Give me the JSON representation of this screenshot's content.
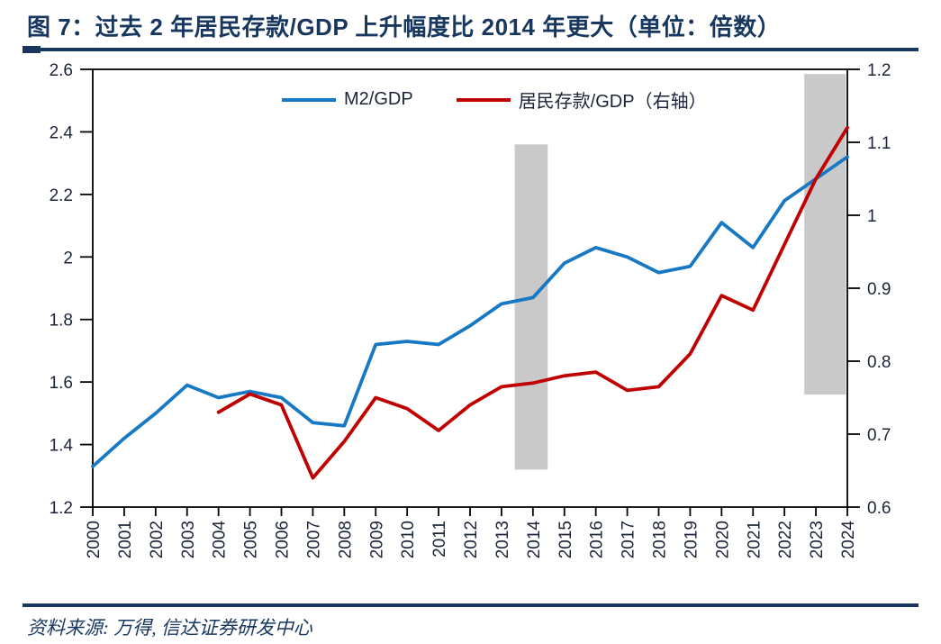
{
  "title": "图 7：过去 2 年居民存款/GDP 上升幅度比 2014 年更大（单位：倍数）",
  "source": "资料来源: 万得, 信达证券研发中心",
  "colors": {
    "accent_navy": "#17375E",
    "m2_line": "#1778C4",
    "deposit_line": "#C00000",
    "band_gray": "#C9C9C9",
    "axis_line": "#000000",
    "axis_text": "#1B2437"
  },
  "legend": {
    "items": [
      {
        "label": "M2/GDP",
        "color_key": "m2_line"
      },
      {
        "label": "居民存款/GDP（右轴）",
        "color_key": "deposit_line"
      }
    ]
  },
  "chart_data": {
    "type": "line",
    "title": "过去2年居民存款/GDP上升幅度比2014年更大（单位：倍数）",
    "x": [
      2000,
      2001,
      2002,
      2003,
      2004,
      2005,
      2006,
      2007,
      2008,
      2009,
      2010,
      2011,
      2012,
      2013,
      2014,
      2015,
      2016,
      2017,
      2018,
      2019,
      2020,
      2021,
      2022,
      2023,
      2024
    ],
    "series": [
      {
        "name": "M2/GDP",
        "axis": "left",
        "color_key": "m2_line",
        "values": [
          1.33,
          1.42,
          1.5,
          1.59,
          1.55,
          1.57,
          1.55,
          1.47,
          1.46,
          1.72,
          1.73,
          1.72,
          1.78,
          1.85,
          1.87,
          1.98,
          2.03,
          2.0,
          1.95,
          1.97,
          2.11,
          2.03,
          2.18,
          2.25,
          2.32
        ]
      },
      {
        "name": "居民存款/GDP（右轴）",
        "axis": "right",
        "color_key": "deposit_line",
        "values": [
          null,
          null,
          null,
          null,
          0.73,
          0.755,
          0.74,
          0.64,
          0.69,
          0.75,
          0.735,
          0.705,
          0.74,
          0.765,
          0.77,
          0.78,
          0.785,
          0.76,
          0.765,
          0.81,
          0.89,
          0.87,
          0.96,
          1.05,
          1.12
        ]
      }
    ],
    "left_axis": {
      "min": 1.2,
      "max": 2.6,
      "tick_values": [
        1.2,
        1.4,
        1.6,
        1.8,
        2.0,
        2.2,
        2.4,
        2.6
      ],
      "tick_labels": [
        "1.2",
        "1.4",
        "1.6",
        "1.8",
        "2",
        "2.2",
        "2.4",
        "2.6"
      ]
    },
    "right_axis": {
      "min": 0.6,
      "max": 1.2,
      "tick_values": [
        0.6,
        0.7,
        0.8,
        0.9,
        1.0,
        1.1,
        1.2
      ],
      "tick_labels": [
        "0.6",
        "0.7",
        "0.8",
        "0.9",
        "1",
        "1.1",
        "1.2"
      ]
    },
    "grid": false,
    "legend_position": "top-center-inside",
    "highlight_bands": [
      {
        "x0": 2013.42,
        "x1": 2014.47,
        "top_left_value": 2.36,
        "bottom_left_value": 1.32
      },
      {
        "x0": 2022.63,
        "x1": 2023.95,
        "top_left_value": 2.585,
        "bottom_left_value": 1.56
      }
    ]
  }
}
